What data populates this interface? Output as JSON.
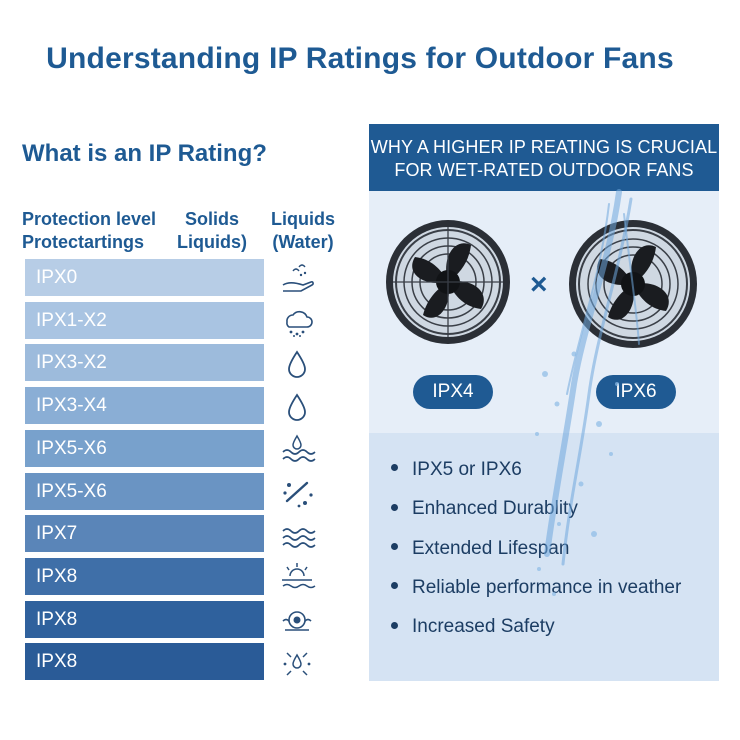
{
  "title": "Understanding IP Ratings for Outdoor Fans",
  "subtitle": "What is an IP Rating?",
  "columns": {
    "protection": "Protection level\nProtectartings",
    "solids": "Solids\nLiquids)",
    "liquids": "Liquids\n(Water)"
  },
  "rows": [
    {
      "label": "IPX0",
      "color": "#b7cde6",
      "icon": "hand-water-icon"
    },
    {
      "label": "IPX1-X2",
      "color": "#a9c4e2",
      "icon": "rain-cloud-icon"
    },
    {
      "label": "IPX3-X2",
      "color": "#9dbbdc",
      "icon": "water-drop-icon"
    },
    {
      "label": "IPX3-X4",
      "color": "#8aaed5",
      "icon": "water-drop-icon"
    },
    {
      "label": "IPX5-X6",
      "color": "#78a1cc",
      "icon": "water-waves-icon"
    },
    {
      "label": "IPX5-X6",
      "color": "#6a94c3",
      "icon": "sprinkler-icon"
    },
    {
      "label": "IPX7",
      "color": "#5a85b8",
      "icon": "waves-icon"
    },
    {
      "label": "IPX8",
      "color": "#3f6fa8",
      "icon": "sun-waves-icon"
    },
    {
      "label": "IPX8",
      "color": "#2f619d",
      "icon": "submersion-icon"
    },
    {
      "label": "IPX8",
      "color": "#2a5b97",
      "icon": "pressure-icon"
    }
  ],
  "panel": {
    "heading_line1": "WHY A HIGHER IP REATING IS CRUCIAL",
    "heading_line2": "FOR WET-RATED OUTDOOR FANS",
    "fan_left_label": "IPX4",
    "fan_right_label": "IPX6",
    "separator": "×",
    "bullets": [
      "IPX5 or IPX6",
      "Enhanced Durablity",
      "Extended Lifespan",
      "Reliable performance in veather",
      "Increased Safety"
    ]
  },
  "colors": {
    "brand": "#1e5a93",
    "panel_header": "#1f5a93",
    "panel_bg": "#dbe7f4"
  }
}
